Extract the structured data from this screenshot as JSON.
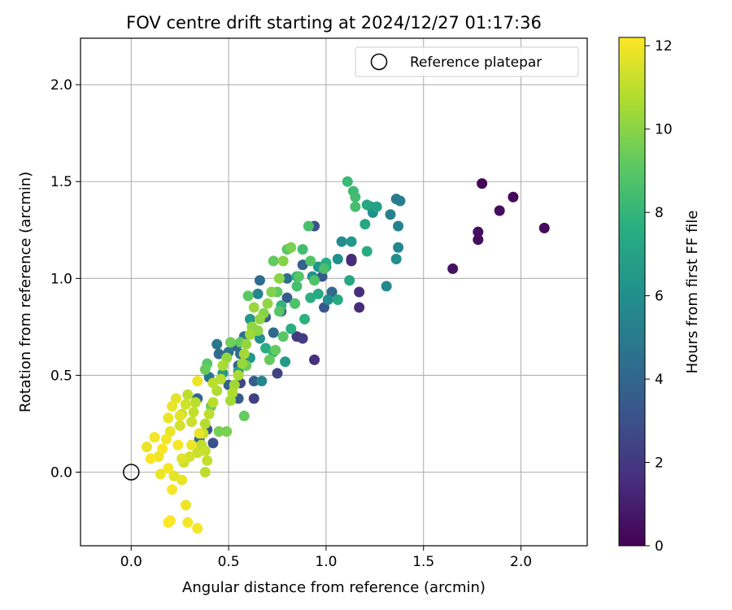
{
  "chart_data": {
    "type": "scatter",
    "title": "FOV centre drift starting at 2024/12/27 01:17:36",
    "xlabel": "Angular distance from reference (arcmin)",
    "ylabel": "Rotation from reference (arcmin)",
    "xlim": [
      -0.26,
      2.34
    ],
    "ylim": [
      -0.38,
      2.24
    ],
    "x_ticks": [
      0.0,
      0.5,
      1.0,
      1.5,
      2.0
    ],
    "y_ticks": [
      0.0,
      0.5,
      1.0,
      1.5,
      2.0
    ],
    "x_tick_labels": [
      "0.0",
      "0.5",
      "1.0",
      "1.5",
      "2.0"
    ],
    "y_tick_labels": [
      "0.0",
      "0.5",
      "1.0",
      "1.5",
      "2.0"
    ],
    "grid": true,
    "legend": {
      "position": "top-right",
      "entries": [
        {
          "label": "Reference platepar",
          "marker": "open-circle"
        }
      ]
    },
    "reference_point": {
      "x": 0.0,
      "y": 0.0
    },
    "colorbar": {
      "label": "Hours from first FF file",
      "colormap": "viridis",
      "range": [
        0,
        12.2
      ],
      "ticks": [
        0,
        2,
        4,
        6,
        8,
        10,
        12
      ],
      "tick_labels": [
        "0",
        "2",
        "4",
        "6",
        "8",
        "10",
        "12"
      ]
    },
    "points": [
      {
        "x": 1.8,
        "y": 1.49,
        "t": 0.2
      },
      {
        "x": 1.96,
        "y": 1.42,
        "t": 0.3
      },
      {
        "x": 1.89,
        "y": 1.35,
        "t": 0.4
      },
      {
        "x": 2.12,
        "y": 1.26,
        "t": 0.3
      },
      {
        "x": 1.78,
        "y": 1.24,
        "t": 0.5
      },
      {
        "x": 1.78,
        "y": 1.2,
        "t": 0.4
      },
      {
        "x": 1.65,
        "y": 1.05,
        "t": 0.6
      },
      {
        "x": 1.17,
        "y": 0.93,
        "t": 1.6
      },
      {
        "x": 1.17,
        "y": 0.85,
        "t": 1.5
      },
      {
        "x": 1.13,
        "y": 1.1,
        "t": 1.4
      },
      {
        "x": 1.13,
        "y": 1.09,
        "t": 1.5
      },
      {
        "x": 0.94,
        "y": 0.58,
        "t": 1.7
      },
      {
        "x": 0.88,
        "y": 0.69,
        "t": 2.2
      },
      {
        "x": 0.75,
        "y": 0.51,
        "t": 2.4
      },
      {
        "x": 0.85,
        "y": 0.7,
        "t": 2.0
      },
      {
        "x": 0.56,
        "y": 0.46,
        "t": 2.5
      },
      {
        "x": 0.63,
        "y": 0.38,
        "t": 2.3
      },
      {
        "x": 0.42,
        "y": 0.15,
        "t": 3.0
      },
      {
        "x": 0.39,
        "y": 0.22,
        "t": 3.2
      },
      {
        "x": 0.94,
        "y": 1.27,
        "t": 3.0
      },
      {
        "x": 0.99,
        "y": 0.85,
        "t": 3.3
      },
      {
        "x": 0.98,
        "y": 1.01,
        "t": 3.4
      },
      {
        "x": 0.77,
        "y": 0.83,
        "t": 3.5
      },
      {
        "x": 0.8,
        "y": 0.9,
        "t": 3.6
      },
      {
        "x": 0.69,
        "y": 0.8,
        "t": 3.7
      },
      {
        "x": 0.55,
        "y": 0.38,
        "t": 3.4
      },
      {
        "x": 0.63,
        "y": 0.47,
        "t": 3.6
      },
      {
        "x": 0.5,
        "y": 0.45,
        "t": 3.8
      },
      {
        "x": 0.55,
        "y": 0.55,
        "t": 3.9
      },
      {
        "x": 0.34,
        "y": 0.38,
        "t": 4.0
      },
      {
        "x": 0.88,
        "y": 1.07,
        "t": 3.8
      },
      {
        "x": 1.03,
        "y": 0.93,
        "t": 4.2
      },
      {
        "x": 0.73,
        "y": 0.72,
        "t": 4.1
      },
      {
        "x": 0.54,
        "y": 0.65,
        "t": 4.0
      },
      {
        "x": 0.45,
        "y": 0.61,
        "t": 4.2
      },
      {
        "x": 0.56,
        "y": 0.61,
        "t": 4.4
      },
      {
        "x": 0.35,
        "y": 0.17,
        "t": 4.1
      },
      {
        "x": 0.66,
        "y": 0.99,
        "t": 4.3
      },
      {
        "x": 0.8,
        "y": 1.0,
        "t": 4.5
      },
      {
        "x": 0.5,
        "y": 0.62,
        "t": 4.6
      },
      {
        "x": 0.44,
        "y": 0.66,
        "t": 4.8
      },
      {
        "x": 0.4,
        "y": 0.49,
        "t": 4.7
      },
      {
        "x": 0.58,
        "y": 0.7,
        "t": 4.5
      },
      {
        "x": 1.36,
        "y": 1.41,
        "t": 5.0
      },
      {
        "x": 1.38,
        "y": 1.4,
        "t": 5.1
      },
      {
        "x": 1.33,
        "y": 1.33,
        "t": 5.3
      },
      {
        "x": 1.37,
        "y": 1.27,
        "t": 5.4
      },
      {
        "x": 1.37,
        "y": 1.16,
        "t": 5.6
      },
      {
        "x": 1.36,
        "y": 1.1,
        "t": 6.0
      },
      {
        "x": 1.31,
        "y": 0.96,
        "t": 5.7
      },
      {
        "x": 1.23,
        "y": 1.37,
        "t": 6.2
      },
      {
        "x": 1.24,
        "y": 1.34,
        "t": 6.0
      },
      {
        "x": 1.13,
        "y": 1.19,
        "t": 6.4
      },
      {
        "x": 1.08,
        "y": 1.19,
        "t": 5.8
      },
      {
        "x": 1.06,
        "y": 1.1,
        "t": 6.1
      },
      {
        "x": 1.0,
        "y": 1.06,
        "t": 6.5
      },
      {
        "x": 0.96,
        "y": 1.06,
        "t": 6.3
      },
      {
        "x": 1.01,
        "y": 0.89,
        "t": 5.9
      },
      {
        "x": 0.93,
        "y": 1.01,
        "t": 6.2
      },
      {
        "x": 0.79,
        "y": 0.57,
        "t": 6.6
      },
      {
        "x": 0.67,
        "y": 0.47,
        "t": 5.5
      },
      {
        "x": 0.65,
        "y": 0.92,
        "t": 5.6
      },
      {
        "x": 0.66,
        "y": 0.69,
        "t": 6.0
      },
      {
        "x": 0.61,
        "y": 0.59,
        "t": 6.3
      },
      {
        "x": 0.47,
        "y": 0.51,
        "t": 6.7
      },
      {
        "x": 0.61,
        "y": 0.79,
        "t": 6.5
      },
      {
        "x": 0.55,
        "y": 0.52,
        "t": 6.8
      },
      {
        "x": 1.26,
        "y": 1.37,
        "t": 7.0
      },
      {
        "x": 1.21,
        "y": 1.38,
        "t": 7.2
      },
      {
        "x": 1.2,
        "y": 1.28,
        "t": 7.3
      },
      {
        "x": 1.21,
        "y": 1.14,
        "t": 7.5
      },
      {
        "x": 1.12,
        "y": 0.99,
        "t": 7.2
      },
      {
        "x": 1.06,
        "y": 0.89,
        "t": 7.4
      },
      {
        "x": 1.0,
        "y": 1.08,
        "t": 7.6
      },
      {
        "x": 0.96,
        "y": 0.92,
        "t": 7.4
      },
      {
        "x": 0.92,
        "y": 0.9,
        "t": 7.7
      },
      {
        "x": 0.89,
        "y": 0.79,
        "t": 7.8
      },
      {
        "x": 0.85,
        "y": 1.01,
        "t": 7.5
      },
      {
        "x": 0.84,
        "y": 0.87,
        "t": 7.9
      },
      {
        "x": 0.82,
        "y": 0.74,
        "t": 7.6
      },
      {
        "x": 0.73,
        "y": 0.62,
        "t": 7.8
      },
      {
        "x": 0.69,
        "y": 0.64,
        "t": 7.6
      },
      {
        "x": 0.77,
        "y": 0.86,
        "t": 8.0
      },
      {
        "x": 1.11,
        "y": 1.5,
        "t": 8.2
      },
      {
        "x": 1.14,
        "y": 1.45,
        "t": 8.3
      },
      {
        "x": 1.15,
        "y": 1.42,
        "t": 8.4
      },
      {
        "x": 1.15,
        "y": 1.37,
        "t": 8.5
      },
      {
        "x": 0.91,
        "y": 1.27,
        "t": 8.6
      },
      {
        "x": 0.88,
        "y": 1.15,
        "t": 8.4
      },
      {
        "x": 0.92,
        "y": 1.09,
        "t": 8.8
      },
      {
        "x": 0.99,
        "y": 1.05,
        "t": 8.6
      },
      {
        "x": 0.94,
        "y": 0.99,
        "t": 8.7
      },
      {
        "x": 0.86,
        "y": 1.01,
        "t": 8.9
      },
      {
        "x": 0.85,
        "y": 0.96,
        "t": 8.5
      },
      {
        "x": 0.84,
        "y": 0.87,
        "t": 8.7
      },
      {
        "x": 0.8,
        "y": 1.15,
        "t": 9.0
      },
      {
        "x": 0.73,
        "y": 1.09,
        "t": 9.2
      },
      {
        "x": 0.75,
        "y": 0.93,
        "t": 9.1
      },
      {
        "x": 0.76,
        "y": 0.83,
        "t": 8.9
      },
      {
        "x": 0.78,
        "y": 0.7,
        "t": 9.0
      },
      {
        "x": 0.74,
        "y": 0.63,
        "t": 9.2
      },
      {
        "x": 0.71,
        "y": 0.58,
        "t": 9.3
      },
      {
        "x": 0.6,
        "y": 0.91,
        "t": 9.1
      },
      {
        "x": 0.59,
        "y": 0.55,
        "t": 9.4
      },
      {
        "x": 0.56,
        "y": 0.67,
        "t": 9.2
      },
      {
        "x": 0.51,
        "y": 0.67,
        "t": 9.5
      },
      {
        "x": 0.39,
        "y": 0.56,
        "t": 9.0
      },
      {
        "x": 0.38,
        "y": 0.53,
        "t": 9.3
      },
      {
        "x": 0.58,
        "y": 0.29,
        "t": 9.2
      },
      {
        "x": 0.41,
        "y": 0.34,
        "t": 9.4
      },
      {
        "x": 0.45,
        "y": 0.21,
        "t": 9.6
      },
      {
        "x": 0.49,
        "y": 0.21,
        "t": 9.7
      },
      {
        "x": 0.82,
        "y": 1.16,
        "t": 9.7
      },
      {
        "x": 0.78,
        "y": 1.09,
        "t": 9.9
      },
      {
        "x": 0.76,
        "y": 1.0,
        "t": 10.0
      },
      {
        "x": 0.72,
        "y": 0.93,
        "t": 9.8
      },
      {
        "x": 0.7,
        "y": 0.87,
        "t": 10.1
      },
      {
        "x": 0.68,
        "y": 0.82,
        "t": 9.9
      },
      {
        "x": 0.66,
        "y": 0.79,
        "t": 10.2
      },
      {
        "x": 0.65,
        "y": 0.73,
        "t": 10.0
      },
      {
        "x": 0.63,
        "y": 0.85,
        "t": 10.3
      },
      {
        "x": 0.62,
        "y": 0.75,
        "t": 10.1
      },
      {
        "x": 0.61,
        "y": 0.71,
        "t": 10.4
      },
      {
        "x": 0.59,
        "y": 0.66,
        "t": 10.2
      },
      {
        "x": 0.58,
        "y": 0.61,
        "t": 10.5
      },
      {
        "x": 0.57,
        "y": 0.56,
        "t": 10.3
      },
      {
        "x": 0.55,
        "y": 0.5,
        "t": 10.6
      },
      {
        "x": 0.53,
        "y": 0.45,
        "t": 10.4
      },
      {
        "x": 0.52,
        "y": 0.41,
        "t": 10.7
      },
      {
        "x": 0.51,
        "y": 0.37,
        "t": 10.5
      },
      {
        "x": 0.49,
        "y": 0.59,
        "t": 10.2
      },
      {
        "x": 0.47,
        "y": 0.55,
        "t": 10.6
      },
      {
        "x": 0.46,
        "y": 0.48,
        "t": 10.8
      },
      {
        "x": 0.44,
        "y": 0.42,
        "t": 10.7
      },
      {
        "x": 0.42,
        "y": 0.36,
        "t": 10.9
      },
      {
        "x": 0.4,
        "y": 0.3,
        "t": 11.0
      },
      {
        "x": 0.38,
        "y": 0.25,
        "t": 10.8
      },
      {
        "x": 0.37,
        "y": 0.2,
        "t": 11.1
      },
      {
        "x": 0.36,
        "y": 0.14,
        "t": 11.0
      },
      {
        "x": 0.34,
        "y": 0.1,
        "t": 11.2
      },
      {
        "x": 0.33,
        "y": 0.36,
        "t": 10.9
      },
      {
        "x": 0.32,
        "y": 0.31,
        "t": 11.1
      },
      {
        "x": 0.31,
        "y": 0.26,
        "t": 11.2
      },
      {
        "x": 0.29,
        "y": 0.4,
        "t": 11.0
      },
      {
        "x": 0.28,
        "y": 0.35,
        "t": 11.3
      },
      {
        "x": 0.26,
        "y": 0.3,
        "t": 11.2
      },
      {
        "x": 0.25,
        "y": 0.24,
        "t": 11.4
      },
      {
        "x": 0.38,
        "y": 0.0,
        "t": 11.0
      },
      {
        "x": 0.38,
        "y": 0.11,
        "t": 11.2
      },
      {
        "x": 0.3,
        "y": 0.08,
        "t": 11.4
      },
      {
        "x": 0.42,
        "y": 0.46,
        "t": 11.0
      },
      {
        "x": 0.39,
        "y": 0.06,
        "t": 11.1
      },
      {
        "x": 0.27,
        "y": 0.05,
        "t": 11.3
      },
      {
        "x": 0.23,
        "y": 0.38,
        "t": 11.7
      },
      {
        "x": 0.21,
        "y": 0.34,
        "t": 11.8
      },
      {
        "x": 0.19,
        "y": 0.28,
        "t": 11.9
      },
      {
        "x": 0.2,
        "y": 0.21,
        "t": 11.8
      },
      {
        "x": 0.18,
        "y": 0.17,
        "t": 12.0
      },
      {
        "x": 0.16,
        "y": 0.12,
        "t": 12.1
      },
      {
        "x": 0.14,
        "y": 0.08,
        "t": 11.9
      },
      {
        "x": 0.12,
        "y": 0.18,
        "t": 12.0
      },
      {
        "x": 0.1,
        "y": 0.07,
        "t": 12.1
      },
      {
        "x": 0.08,
        "y": 0.13,
        "t": 11.8
      },
      {
        "x": 0.15,
        "y": -0.01,
        "t": 11.9
      },
      {
        "x": 0.19,
        "y": 0.02,
        "t": 12.0
      },
      {
        "x": 0.21,
        "y": -0.09,
        "t": 12.1
      },
      {
        "x": 0.22,
        "y": -0.02,
        "t": 11.7
      },
      {
        "x": 0.26,
        "y": -0.04,
        "t": 11.8
      },
      {
        "x": 0.28,
        "y": -0.17,
        "t": 11.9
      },
      {
        "x": 0.29,
        "y": -0.26,
        "t": 12.0
      },
      {
        "x": 0.2,
        "y": -0.25,
        "t": 12.1
      },
      {
        "x": 0.19,
        "y": -0.26,
        "t": 12.2
      },
      {
        "x": 0.34,
        "y": -0.29,
        "t": 12.0
      },
      {
        "x": 0.24,
        "y": 0.14,
        "t": 12.1
      },
      {
        "x": 0.25,
        "y": 0.29,
        "t": 11.7
      },
      {
        "x": 0.31,
        "y": 0.14,
        "t": 11.9
      },
      {
        "x": 0.35,
        "y": 0.2,
        "t": 11.8
      },
      {
        "x": 0.26,
        "y": 0.07,
        "t": 11.6
      },
      {
        "x": 0.34,
        "y": 0.47,
        "t": 11.9
      }
    ]
  }
}
